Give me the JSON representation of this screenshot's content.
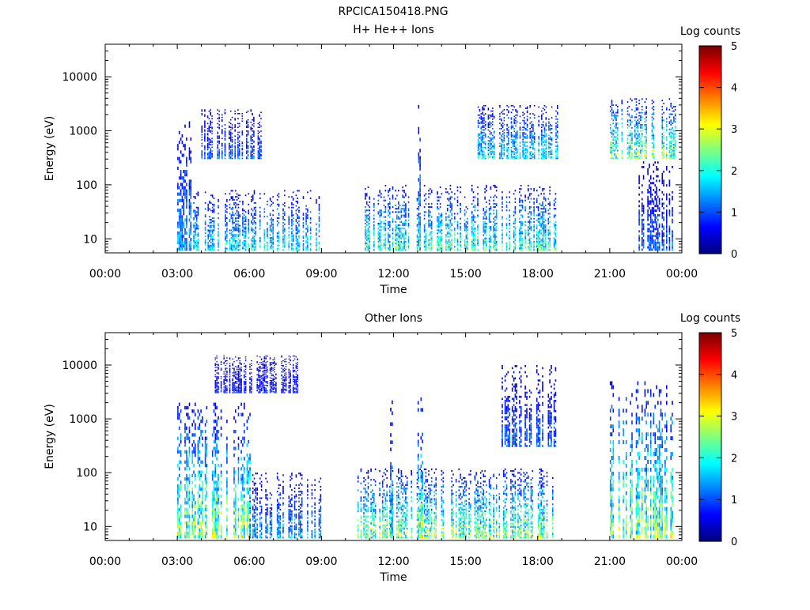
{
  "figure_title": "RPCICA150418.PNG",
  "colorbar": {
    "label": "Log counts",
    "ticks": [
      "0",
      "1",
      "2",
      "3",
      "4",
      "5"
    ],
    "range": [
      0,
      5
    ],
    "colormap": "jet"
  },
  "chart_data": [
    {
      "type": "heatmap",
      "title": "H+ He++ Ions",
      "xlabel": "Time",
      "ylabel": "Energy (eV)",
      "x_range_hours": [
        0,
        24
      ],
      "x_ticks": [
        "00:00",
        "03:00",
        "06:00",
        "09:00",
        "12:00",
        "15:00",
        "18:00",
        "21:00",
        "00:00"
      ],
      "y_scale": "log",
      "y_range": [
        5.5,
        40000
      ],
      "y_ticks": [
        "10",
        "100",
        "1000",
        "10000"
      ],
      "activity": [
        {
          "t_start": 3.0,
          "t_end": 3.6,
          "e_min": 6,
          "e_max": 1500,
          "level_max": 2.0
        },
        {
          "t_start": 3.6,
          "t_end": 9.0,
          "e_min": 6,
          "e_max": 80,
          "level_max": 2.5
        },
        {
          "t_start": 4.0,
          "t_end": 6.5,
          "e_min": 300,
          "e_max": 2500,
          "level_max": 1.5
        },
        {
          "t_start": 10.8,
          "t_end": 18.8,
          "e_min": 6,
          "e_max": 100,
          "level_max": 3.0
        },
        {
          "t_start": 12.9,
          "t_end": 13.1,
          "e_min": 6,
          "e_max": 3000,
          "level_max": 2.5
        },
        {
          "t_start": 15.5,
          "t_end": 18.8,
          "e_min": 300,
          "e_max": 3000,
          "level_max": 2.5
        },
        {
          "t_start": 21.0,
          "t_end": 23.7,
          "e_min": 300,
          "e_max": 4000,
          "level_max": 3.5
        },
        {
          "t_start": 22.2,
          "t_end": 23.7,
          "e_min": 6,
          "e_max": 300,
          "level_max": 1.5
        }
      ]
    },
    {
      "type": "heatmap",
      "title": "Other Ions",
      "xlabel": "Time",
      "ylabel": "Energy (eV)",
      "x_range_hours": [
        0,
        24
      ],
      "x_ticks": [
        "00:00",
        "03:00",
        "06:00",
        "09:00",
        "12:00",
        "15:00",
        "18:00",
        "21:00",
        "00:00"
      ],
      "y_scale": "log",
      "y_range": [
        5.5,
        40000
      ],
      "y_ticks": [
        "10",
        "100",
        "1000",
        "10000"
      ],
      "activity": [
        {
          "t_start": 3.0,
          "t_end": 6.0,
          "e_min": 6,
          "e_max": 2000,
          "level_max": 3.5
        },
        {
          "t_start": 6.0,
          "t_end": 9.0,
          "e_min": 6,
          "e_max": 100,
          "level_max": 2.0
        },
        {
          "t_start": 4.5,
          "t_end": 8.0,
          "e_min": 3000,
          "e_max": 15000,
          "level_max": 1.0
        },
        {
          "t_start": 10.5,
          "t_end": 18.8,
          "e_min": 6,
          "e_max": 120,
          "level_max": 3.5
        },
        {
          "t_start": 11.8,
          "t_end": 12.0,
          "e_min": 6,
          "e_max": 3000,
          "level_max": 2.5
        },
        {
          "t_start": 13.0,
          "t_end": 13.2,
          "e_min": 6,
          "e_max": 2500,
          "level_max": 3.5
        },
        {
          "t_start": 16.5,
          "t_end": 18.8,
          "e_min": 300,
          "e_max": 10000,
          "level_max": 1.5
        },
        {
          "t_start": 21.0,
          "t_end": 23.7,
          "e_min": 6,
          "e_max": 5000,
          "level_max": 3.5
        }
      ]
    }
  ]
}
